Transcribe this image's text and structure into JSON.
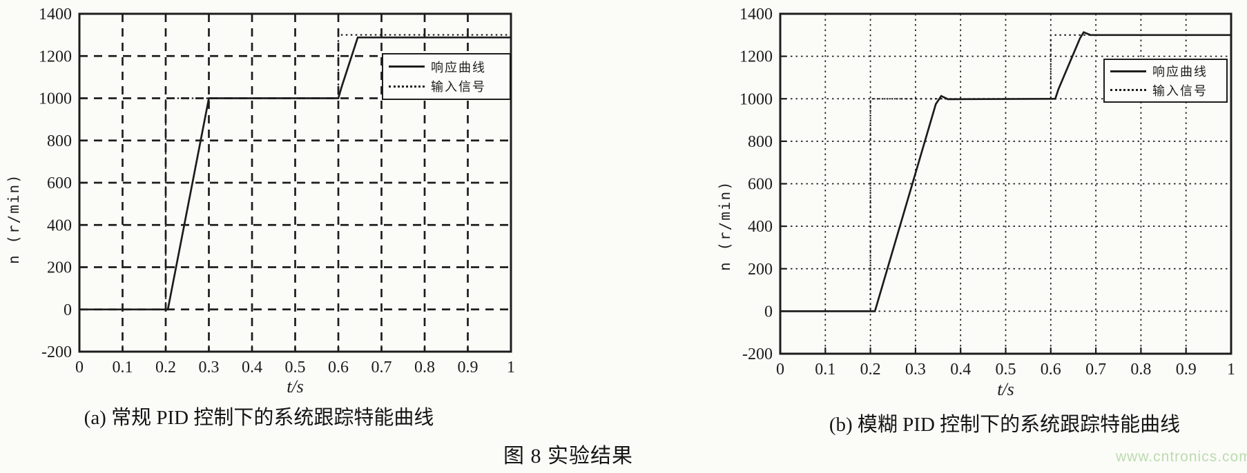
{
  "figure_caption": "图 8  实验结果",
  "watermark": {
    "text": "www.cntronics.com",
    "color": "#bcdcb0"
  },
  "line_color": "#1c1c1c",
  "chart_data": [
    {
      "type": "line",
      "caption": "(a) 常规 PID 控制下的系统跟踪特能曲线",
      "xlabel": "t/s",
      "ylabel": "n (r/min)",
      "xlim": [
        0,
        1
      ],
      "ylim": [
        -200,
        1400
      ],
      "xticks": {
        "values": [
          0,
          0.1,
          0.2,
          0.3,
          0.4,
          0.5,
          0.6,
          0.7,
          0.8,
          0.9,
          1
        ],
        "labels": [
          "0",
          "0.1",
          "0.2",
          "0.3",
          "0.4",
          "0.5",
          "0.6",
          "0.7",
          "0.8",
          "0.9",
          "1"
        ]
      },
      "yticks": {
        "values": [
          -200,
          0,
          200,
          400,
          600,
          800,
          1000,
          1200,
          1400
        ],
        "labels": [
          "-200",
          "0",
          "200",
          "400",
          "600",
          "800",
          "1000",
          "1200",
          "1400"
        ]
      },
      "grid": "bold-dashed",
      "legend": {
        "position": "upper-right",
        "entries": [
          {
            "label": "响应曲线",
            "line": "solid"
          },
          {
            "label": "输入信号",
            "line": "dotted"
          }
        ]
      },
      "series": [
        {
          "name": "输入信号",
          "line": "dotted",
          "points": [
            [
              0,
              0
            ],
            [
              0.2,
              0
            ],
            [
              0.2,
              1000
            ],
            [
              0.6,
              1000
            ],
            [
              0.6,
              1300
            ],
            [
              1,
              1300
            ]
          ]
        },
        {
          "name": "响应曲线",
          "line": "solid",
          "points": [
            [
              0,
              0
            ],
            [
              0.205,
              0
            ],
            [
              0.3,
              1000
            ],
            [
              0.6,
              1000
            ],
            [
              0.607,
              1050
            ],
            [
              0.645,
              1288
            ],
            [
              1,
              1288
            ]
          ]
        }
      ]
    },
    {
      "type": "line",
      "caption": "(b) 模糊 PID 控制下的系统跟踪特能曲线",
      "xlabel": "t/s",
      "ylabel": "n (r/min)",
      "xlim": [
        0,
        1
      ],
      "ylim": [
        -200,
        1400
      ],
      "xticks": {
        "values": [
          0,
          0.1,
          0.2,
          0.3,
          0.4,
          0.5,
          0.6,
          0.7,
          0.8,
          0.9,
          1
        ],
        "labels": [
          "0",
          "0.1",
          "0.2",
          "0.3",
          "0.4",
          "0.5",
          "0.6",
          "0.7",
          "0.8",
          "0.9",
          "1"
        ]
      },
      "yticks": {
        "values": [
          -200,
          0,
          200,
          400,
          600,
          800,
          1000,
          1200,
          1400
        ],
        "labels": [
          "-200",
          "0",
          "200",
          "400",
          "600",
          "800",
          "1000",
          "1200",
          "1400"
        ]
      },
      "grid": "fine-dotted",
      "legend": {
        "position": "upper-right",
        "entries": [
          {
            "label": "响应曲线",
            "line": "solid"
          },
          {
            "label": "输入信号",
            "line": "dotted"
          }
        ]
      },
      "series": [
        {
          "name": "输入信号",
          "line": "dotted",
          "points": [
            [
              0,
              0
            ],
            [
              0.2,
              0
            ],
            [
              0.2,
              1000
            ],
            [
              0.6,
              1000
            ],
            [
              0.6,
              1300
            ],
            [
              1,
              1300
            ]
          ]
        },
        {
          "name": "响应曲线",
          "line": "solid",
          "points": [
            [
              0,
              0
            ],
            [
              0.21,
              0
            ],
            [
              0.345,
              975
            ],
            [
              0.357,
              1013
            ],
            [
              0.372,
              998
            ],
            [
              0.61,
              1000
            ],
            [
              0.617,
              1045
            ],
            [
              0.665,
              1285
            ],
            [
              0.673,
              1313
            ],
            [
              0.688,
              1300
            ],
            [
              1,
              1300
            ]
          ]
        }
      ]
    }
  ]
}
